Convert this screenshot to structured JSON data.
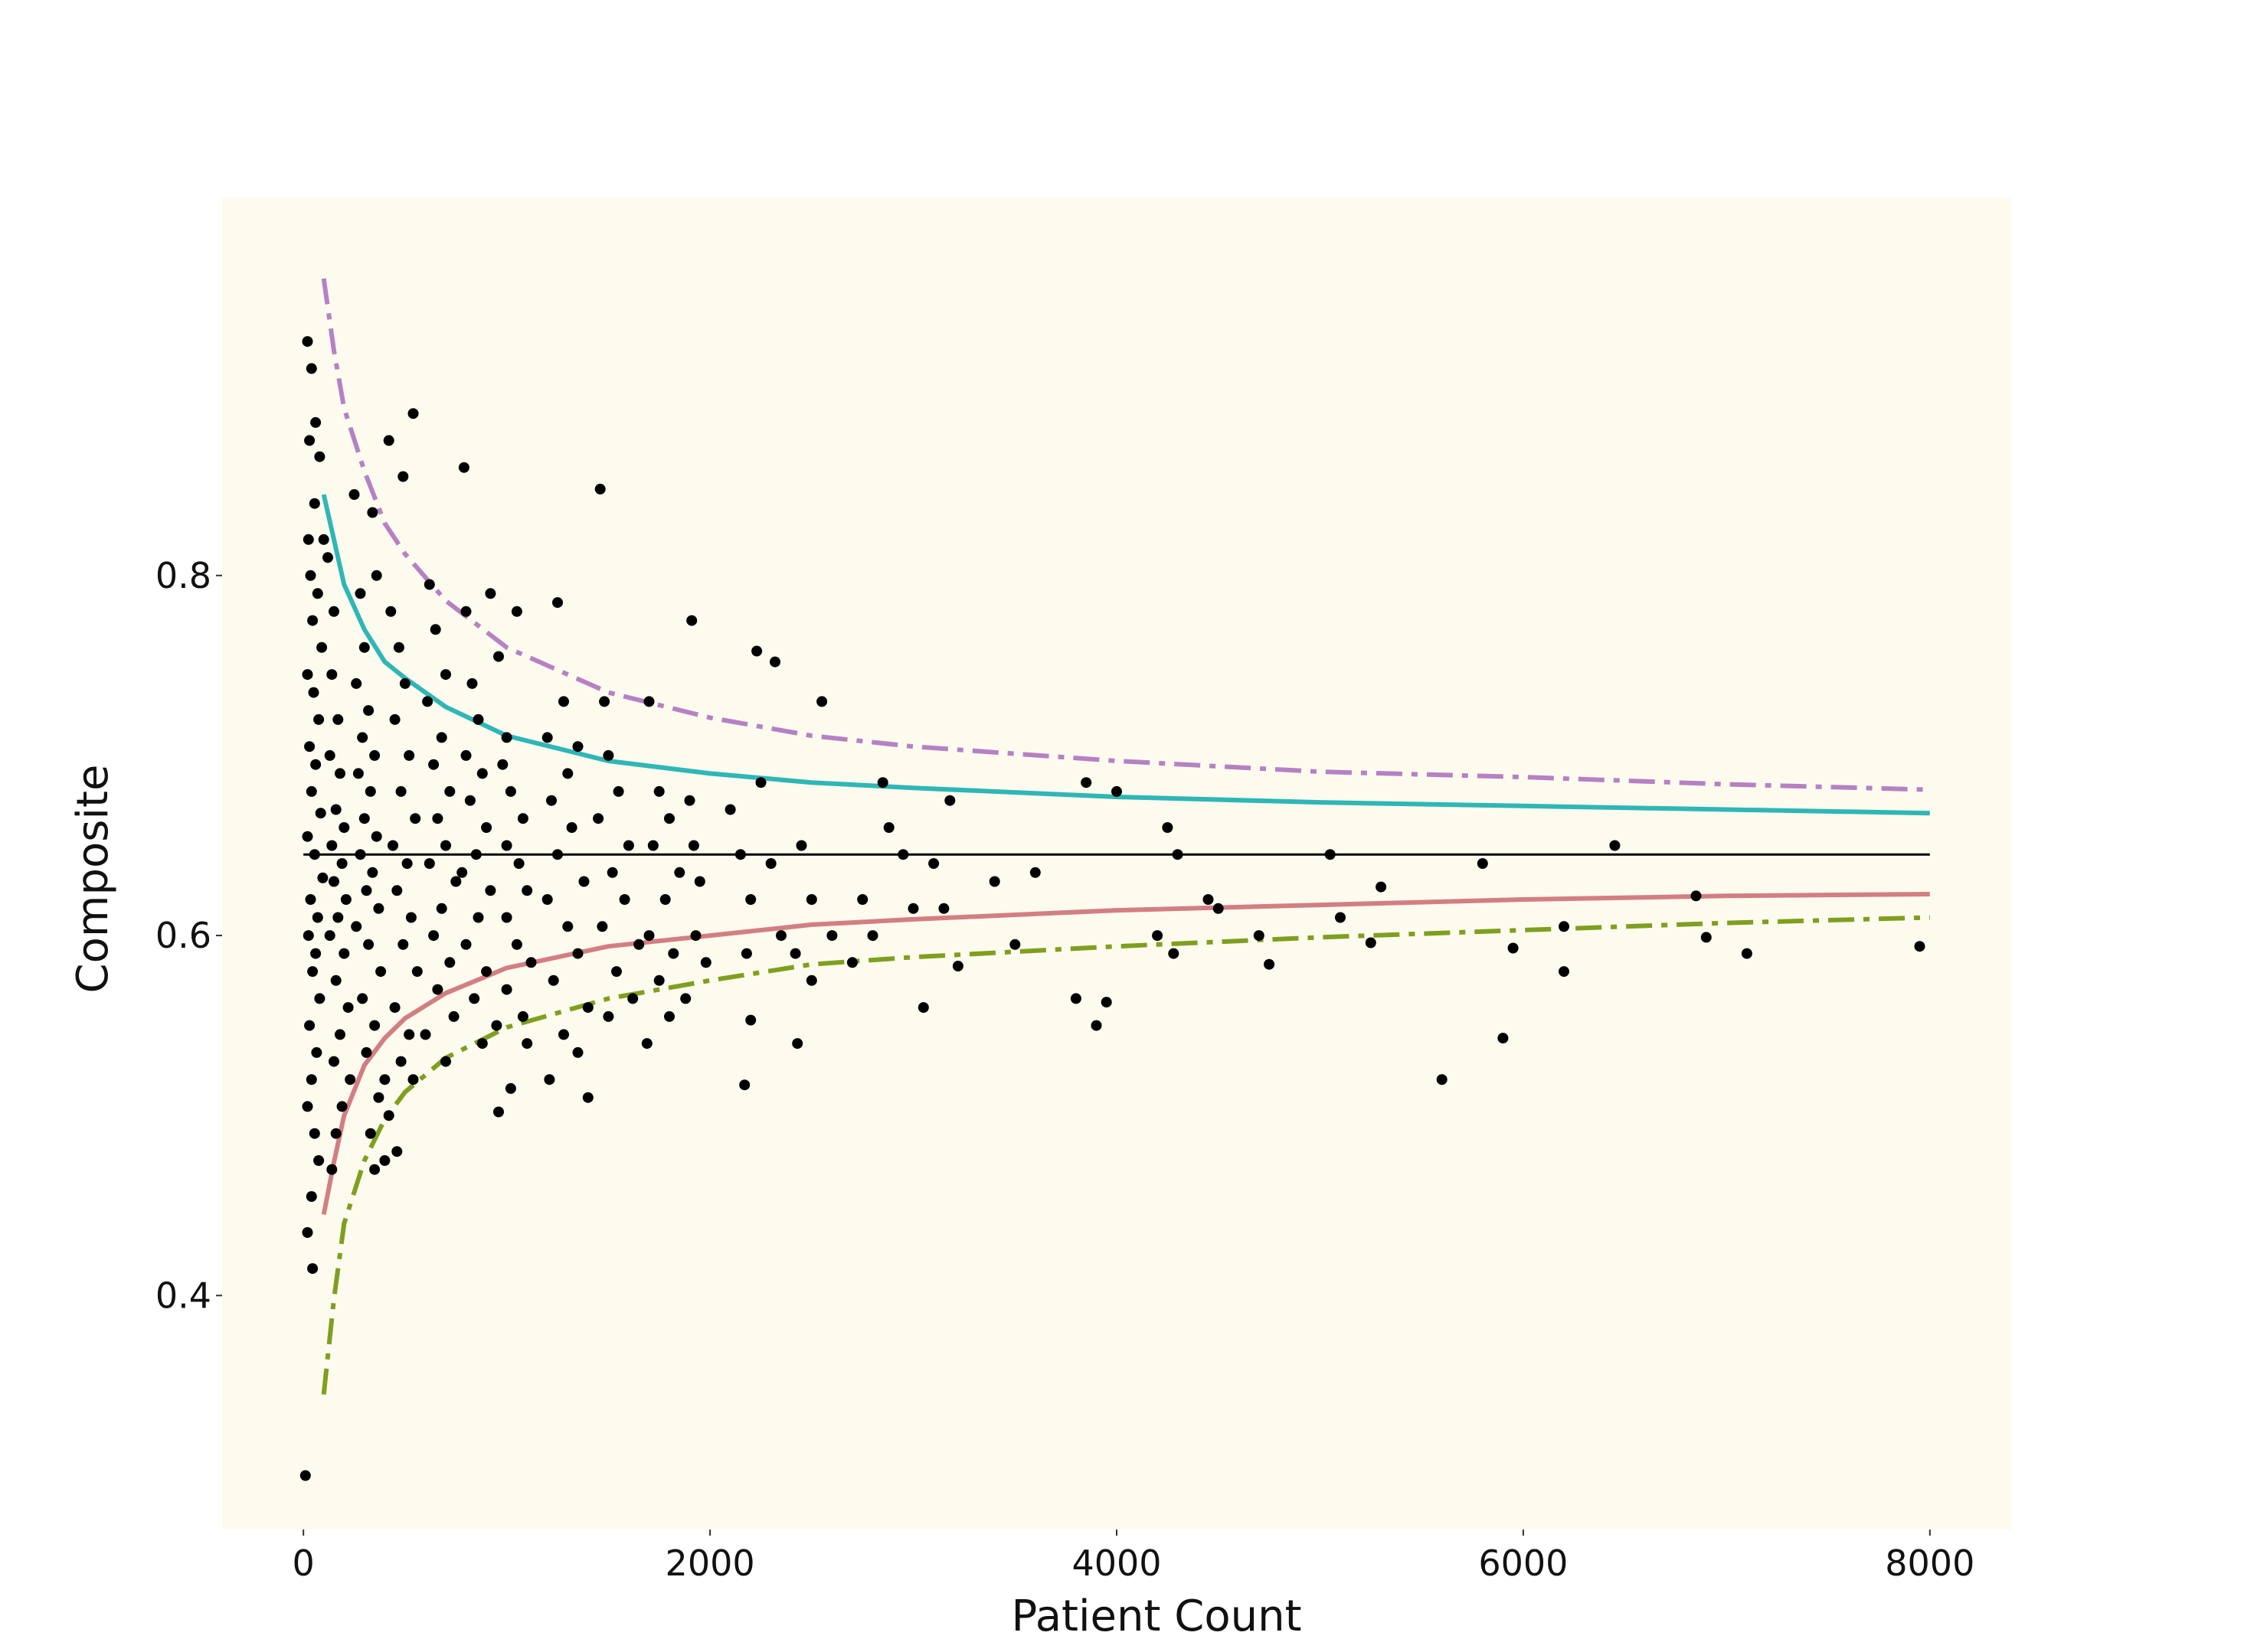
{
  "chart_data": {
    "type": "scatter",
    "xlabel": "Patient Count",
    "ylabel": "Composite",
    "xlim": [
      -400,
      8400
    ],
    "ylim": [
      0.27,
      1.01
    ],
    "x_ticks": [
      {
        "value": 0,
        "label": "0"
      },
      {
        "value": 2000,
        "label": "2000"
      },
      {
        "value": 4000,
        "label": "4000"
      },
      {
        "value": 6000,
        "label": "6000"
      },
      {
        "value": 8000,
        "label": "8000"
      }
    ],
    "y_ticks": [
      {
        "value": 0.4,
        "label": "0.4"
      },
      {
        "value": 0.6,
        "label": "0.6"
      },
      {
        "value": 0.8,
        "label": "0.8"
      }
    ],
    "grid": false,
    "background_color": "#fdfbee",
    "reference_line": {
      "y": 0.645,
      "color": "#000000"
    },
    "control_limits": {
      "x": [
        100,
        150,
        200,
        300,
        400,
        500,
        700,
        1000,
        1500,
        2000,
        2500,
        3000,
        4000,
        5000,
        6000,
        7000,
        8000
      ],
      "upper_outer": [
        0.965,
        0.925,
        0.893,
        0.858,
        0.829,
        0.812,
        0.786,
        0.76,
        0.735,
        0.721,
        0.711,
        0.705,
        0.697,
        0.691,
        0.688,
        0.684,
        0.681
      ],
      "upper_inner": [
        0.845,
        0.82,
        0.795,
        0.77,
        0.752,
        0.743,
        0.727,
        0.711,
        0.697,
        0.69,
        0.685,
        0.682,
        0.677,
        0.674,
        0.672,
        0.67,
        0.668
      ],
      "lower_inner": [
        0.445,
        0.474,
        0.5,
        0.528,
        0.543,
        0.554,
        0.568,
        0.582,
        0.594,
        0.6,
        0.606,
        0.609,
        0.614,
        0.617,
        0.62,
        0.622,
        0.623
      ],
      "lower_outer": [
        0.345,
        0.398,
        0.44,
        0.475,
        0.498,
        0.513,
        0.532,
        0.549,
        0.565,
        0.575,
        0.584,
        0.588,
        0.594,
        0.599,
        0.603,
        0.607,
        0.61
      ],
      "colors": {
        "upper_outer": "#b681c4",
        "upper_inner": "#2fb6b6",
        "lower_inner": "#d37e83",
        "lower_outer": "#7f9f1f"
      }
    },
    "point_color": "#000000",
    "points": [
      {
        "x": 20,
        "y": 0.93
      },
      {
        "x": 40,
        "y": 0.915
      },
      {
        "x": 30,
        "y": 0.875
      },
      {
        "x": 60,
        "y": 0.885
      },
      {
        "x": 80,
        "y": 0.866
      },
      {
        "x": 55,
        "y": 0.84
      },
      {
        "x": 100,
        "y": 0.82
      },
      {
        "x": 25,
        "y": 0.82
      },
      {
        "x": 35,
        "y": 0.8
      },
      {
        "x": 70,
        "y": 0.79
      },
      {
        "x": 45,
        "y": 0.775
      },
      {
        "x": 90,
        "y": 0.76
      },
      {
        "x": 20,
        "y": 0.745
      },
      {
        "x": 50,
        "y": 0.735
      },
      {
        "x": 75,
        "y": 0.72
      },
      {
        "x": 30,
        "y": 0.705
      },
      {
        "x": 60,
        "y": 0.695
      },
      {
        "x": 40,
        "y": 0.68
      },
      {
        "x": 85,
        "y": 0.668
      },
      {
        "x": 20,
        "y": 0.655
      },
      {
        "x": 55,
        "y": 0.645
      },
      {
        "x": 95,
        "y": 0.632
      },
      {
        "x": 35,
        "y": 0.62
      },
      {
        "x": 70,
        "y": 0.61
      },
      {
        "x": 25,
        "y": 0.6
      },
      {
        "x": 60,
        "y": 0.59
      },
      {
        "x": 45,
        "y": 0.58
      },
      {
        "x": 80,
        "y": 0.565
      },
      {
        "x": 30,
        "y": 0.55
      },
      {
        "x": 65,
        "y": 0.535
      },
      {
        "x": 40,
        "y": 0.52
      },
      {
        "x": 20,
        "y": 0.505
      },
      {
        "x": 55,
        "y": 0.49
      },
      {
        "x": 75,
        "y": 0.475
      },
      {
        "x": 40,
        "y": 0.455
      },
      {
        "x": 20,
        "y": 0.435
      },
      {
        "x": 45,
        "y": 0.415
      },
      {
        "x": 10,
        "y": 0.3
      },
      {
        "x": 120,
        "y": 0.81
      },
      {
        "x": 150,
        "y": 0.78
      },
      {
        "x": 140,
        "y": 0.745
      },
      {
        "x": 170,
        "y": 0.72
      },
      {
        "x": 130,
        "y": 0.7
      },
      {
        "x": 180,
        "y": 0.69
      },
      {
        "x": 160,
        "y": 0.67
      },
      {
        "x": 200,
        "y": 0.66
      },
      {
        "x": 140,
        "y": 0.65
      },
      {
        "x": 190,
        "y": 0.64
      },
      {
        "x": 150,
        "y": 0.63
      },
      {
        "x": 210,
        "y": 0.62
      },
      {
        "x": 170,
        "y": 0.61
      },
      {
        "x": 130,
        "y": 0.6
      },
      {
        "x": 200,
        "y": 0.59
      },
      {
        "x": 160,
        "y": 0.575
      },
      {
        "x": 220,
        "y": 0.56
      },
      {
        "x": 180,
        "y": 0.545
      },
      {
        "x": 150,
        "y": 0.53
      },
      {
        "x": 230,
        "y": 0.52
      },
      {
        "x": 190,
        "y": 0.505
      },
      {
        "x": 160,
        "y": 0.49
      },
      {
        "x": 140,
        "y": 0.47
      },
      {
        "x": 250,
        "y": 0.845
      },
      {
        "x": 280,
        "y": 0.79
      },
      {
        "x": 300,
        "y": 0.76
      },
      {
        "x": 260,
        "y": 0.74
      },
      {
        "x": 320,
        "y": 0.725
      },
      {
        "x": 290,
        "y": 0.71
      },
      {
        "x": 350,
        "y": 0.7
      },
      {
        "x": 270,
        "y": 0.69
      },
      {
        "x": 330,
        "y": 0.68
      },
      {
        "x": 300,
        "y": 0.665
      },
      {
        "x": 360,
        "y": 0.655
      },
      {
        "x": 280,
        "y": 0.645
      },
      {
        "x": 340,
        "y": 0.635
      },
      {
        "x": 310,
        "y": 0.625
      },
      {
        "x": 370,
        "y": 0.615
      },
      {
        "x": 260,
        "y": 0.605
      },
      {
        "x": 320,
        "y": 0.595
      },
      {
        "x": 380,
        "y": 0.58
      },
      {
        "x": 290,
        "y": 0.565
      },
      {
        "x": 350,
        "y": 0.55
      },
      {
        "x": 310,
        "y": 0.535
      },
      {
        "x": 400,
        "y": 0.52
      },
      {
        "x": 370,
        "y": 0.51
      },
      {
        "x": 330,
        "y": 0.49
      },
      {
        "x": 350,
        "y": 0.47
      },
      {
        "x": 400,
        "y": 0.475
      },
      {
        "x": 360,
        "y": 0.8
      },
      {
        "x": 340,
        "y": 0.835
      },
      {
        "x": 420,
        "y": 0.875
      },
      {
        "x": 490,
        "y": 0.855
      },
      {
        "x": 540,
        "y": 0.89
      },
      {
        "x": 430,
        "y": 0.78
      },
      {
        "x": 470,
        "y": 0.76
      },
      {
        "x": 500,
        "y": 0.74
      },
      {
        "x": 450,
        "y": 0.72
      },
      {
        "x": 520,
        "y": 0.7
      },
      {
        "x": 480,
        "y": 0.68
      },
      {
        "x": 550,
        "y": 0.665
      },
      {
        "x": 440,
        "y": 0.65
      },
      {
        "x": 510,
        "y": 0.64
      },
      {
        "x": 460,
        "y": 0.625
      },
      {
        "x": 530,
        "y": 0.61
      },
      {
        "x": 490,
        "y": 0.595
      },
      {
        "x": 560,
        "y": 0.58
      },
      {
        "x": 450,
        "y": 0.56
      },
      {
        "x": 520,
        "y": 0.545
      },
      {
        "x": 480,
        "y": 0.53
      },
      {
        "x": 540,
        "y": 0.52
      },
      {
        "x": 420,
        "y": 0.5
      },
      {
        "x": 460,
        "y": 0.48
      },
      {
        "x": 620,
        "y": 0.795
      },
      {
        "x": 650,
        "y": 0.77
      },
      {
        "x": 700,
        "y": 0.745
      },
      {
        "x": 610,
        "y": 0.73
      },
      {
        "x": 680,
        "y": 0.71
      },
      {
        "x": 640,
        "y": 0.695
      },
      {
        "x": 720,
        "y": 0.68
      },
      {
        "x": 660,
        "y": 0.665
      },
      {
        "x": 700,
        "y": 0.65
      },
      {
        "x": 620,
        "y": 0.64
      },
      {
        "x": 750,
        "y": 0.63
      },
      {
        "x": 680,
        "y": 0.615
      },
      {
        "x": 640,
        "y": 0.6
      },
      {
        "x": 720,
        "y": 0.585
      },
      {
        "x": 660,
        "y": 0.57
      },
      {
        "x": 740,
        "y": 0.555
      },
      {
        "x": 600,
        "y": 0.545
      },
      {
        "x": 700,
        "y": 0.53
      },
      {
        "x": 790,
        "y": 0.86
      },
      {
        "x": 800,
        "y": 0.78
      },
      {
        "x": 830,
        "y": 0.74
      },
      {
        "x": 860,
        "y": 0.72
      },
      {
        "x": 800,
        "y": 0.7
      },
      {
        "x": 880,
        "y": 0.69
      },
      {
        "x": 820,
        "y": 0.675
      },
      {
        "x": 900,
        "y": 0.66
      },
      {
        "x": 850,
        "y": 0.645
      },
      {
        "x": 780,
        "y": 0.635
      },
      {
        "x": 920,
        "y": 0.625
      },
      {
        "x": 860,
        "y": 0.61
      },
      {
        "x": 800,
        "y": 0.595
      },
      {
        "x": 900,
        "y": 0.58
      },
      {
        "x": 840,
        "y": 0.565
      },
      {
        "x": 950,
        "y": 0.55
      },
      {
        "x": 880,
        "y": 0.54
      },
      {
        "x": 920,
        "y": 0.79
      },
      {
        "x": 960,
        "y": 0.755
      },
      {
        "x": 1000,
        "y": 0.71
      },
      {
        "x": 1050,
        "y": 0.78
      },
      {
        "x": 980,
        "y": 0.695
      },
      {
        "x": 1020,
        "y": 0.68
      },
      {
        "x": 1080,
        "y": 0.665
      },
      {
        "x": 1000,
        "y": 0.65
      },
      {
        "x": 1060,
        "y": 0.64
      },
      {
        "x": 1100,
        "y": 0.625
      },
      {
        "x": 1000,
        "y": 0.61
      },
      {
        "x": 1050,
        "y": 0.595
      },
      {
        "x": 1120,
        "y": 0.585
      },
      {
        "x": 1000,
        "y": 0.57
      },
      {
        "x": 1080,
        "y": 0.555
      },
      {
        "x": 960,
        "y": 0.502
      },
      {
        "x": 1020,
        "y": 0.515
      },
      {
        "x": 1100,
        "y": 0.54
      },
      {
        "x": 1250,
        "y": 0.785
      },
      {
        "x": 1280,
        "y": 0.73
      },
      {
        "x": 1200,
        "y": 0.71
      },
      {
        "x": 1300,
        "y": 0.69
      },
      {
        "x": 1350,
        "y": 0.705
      },
      {
        "x": 1220,
        "y": 0.675
      },
      {
        "x": 1320,
        "y": 0.66
      },
      {
        "x": 1250,
        "y": 0.645
      },
      {
        "x": 1380,
        "y": 0.63
      },
      {
        "x": 1200,
        "y": 0.62
      },
      {
        "x": 1300,
        "y": 0.605
      },
      {
        "x": 1350,
        "y": 0.59
      },
      {
        "x": 1230,
        "y": 0.575
      },
      {
        "x": 1400,
        "y": 0.56
      },
      {
        "x": 1280,
        "y": 0.545
      },
      {
        "x": 1210,
        "y": 0.52
      },
      {
        "x": 1400,
        "y": 0.51
      },
      {
        "x": 1350,
        "y": 0.535
      },
      {
        "x": 1460,
        "y": 0.848
      },
      {
        "x": 1480,
        "y": 0.73
      },
      {
        "x": 1500,
        "y": 0.7
      },
      {
        "x": 1550,
        "y": 0.68
      },
      {
        "x": 1450,
        "y": 0.665
      },
      {
        "x": 1600,
        "y": 0.65
      },
      {
        "x": 1520,
        "y": 0.635
      },
      {
        "x": 1580,
        "y": 0.62
      },
      {
        "x": 1470,
        "y": 0.605
      },
      {
        "x": 1650,
        "y": 0.595
      },
      {
        "x": 1540,
        "y": 0.58
      },
      {
        "x": 1620,
        "y": 0.565
      },
      {
        "x": 1500,
        "y": 0.555
      },
      {
        "x": 1700,
        "y": 0.73
      },
      {
        "x": 1750,
        "y": 0.68
      },
      {
        "x": 1800,
        "y": 0.665
      },
      {
        "x": 1720,
        "y": 0.65
      },
      {
        "x": 1850,
        "y": 0.635
      },
      {
        "x": 1780,
        "y": 0.62
      },
      {
        "x": 1700,
        "y": 0.6
      },
      {
        "x": 1820,
        "y": 0.59
      },
      {
        "x": 1750,
        "y": 0.575
      },
      {
        "x": 1880,
        "y": 0.565
      },
      {
        "x": 1690,
        "y": 0.54
      },
      {
        "x": 1800,
        "y": 0.555
      },
      {
        "x": 1910,
        "y": 0.775
      },
      {
        "x": 1900,
        "y": 0.675
      },
      {
        "x": 1920,
        "y": 0.65
      },
      {
        "x": 1950,
        "y": 0.63
      },
      {
        "x": 1930,
        "y": 0.6
      },
      {
        "x": 1980,
        "y": 0.585
      },
      {
        "x": 2100,
        "y": 0.67
      },
      {
        "x": 2150,
        "y": 0.645
      },
      {
        "x": 2200,
        "y": 0.62
      },
      {
        "x": 2180,
        "y": 0.59
      },
      {
        "x": 2170,
        "y": 0.517
      },
      {
        "x": 2230,
        "y": 0.758
      },
      {
        "x": 2320,
        "y": 0.752
      },
      {
        "x": 2250,
        "y": 0.685
      },
      {
        "x": 2300,
        "y": 0.64
      },
      {
        "x": 2350,
        "y": 0.6
      },
      {
        "x": 2200,
        "y": 0.553
      },
      {
        "x": 2450,
        "y": 0.65
      },
      {
        "x": 2500,
        "y": 0.62
      },
      {
        "x": 2420,
        "y": 0.59
      },
      {
        "x": 2550,
        "y": 0.73
      },
      {
        "x": 2500,
        "y": 0.575
      },
      {
        "x": 2430,
        "y": 0.54
      },
      {
        "x": 2600,
        "y": 0.6
      },
      {
        "x": 2850,
        "y": 0.685
      },
      {
        "x": 2880,
        "y": 0.66
      },
      {
        "x": 2750,
        "y": 0.62
      },
      {
        "x": 2800,
        "y": 0.6
      },
      {
        "x": 2950,
        "y": 0.645
      },
      {
        "x": 3000,
        "y": 0.615
      },
      {
        "x": 3100,
        "y": 0.64
      },
      {
        "x": 3180,
        "y": 0.675
      },
      {
        "x": 3050,
        "y": 0.56
      },
      {
        "x": 3150,
        "y": 0.615
      },
      {
        "x": 3220,
        "y": 0.583
      },
      {
        "x": 2700,
        "y": 0.585
      },
      {
        "x": 3400,
        "y": 0.63
      },
      {
        "x": 3600,
        "y": 0.635
      },
      {
        "x": 3500,
        "y": 0.595
      },
      {
        "x": 3850,
        "y": 0.685
      },
      {
        "x": 4000,
        "y": 0.68
      },
      {
        "x": 3800,
        "y": 0.565
      },
      {
        "x": 3900,
        "y": 0.55
      },
      {
        "x": 3950,
        "y": 0.563
      },
      {
        "x": 4200,
        "y": 0.6
      },
      {
        "x": 4250,
        "y": 0.66
      },
      {
        "x": 4300,
        "y": 0.645
      },
      {
        "x": 4280,
        "y": 0.59
      },
      {
        "x": 4450,
        "y": 0.62
      },
      {
        "x": 4500,
        "y": 0.615
      },
      {
        "x": 4700,
        "y": 0.6
      },
      {
        "x": 4750,
        "y": 0.584
      },
      {
        "x": 5050,
        "y": 0.645
      },
      {
        "x": 5100,
        "y": 0.61
      },
      {
        "x": 5300,
        "y": 0.627
      },
      {
        "x": 5250,
        "y": 0.596
      },
      {
        "x": 5600,
        "y": 0.52
      },
      {
        "x": 5800,
        "y": 0.64
      },
      {
        "x": 5900,
        "y": 0.543
      },
      {
        "x": 5950,
        "y": 0.593
      },
      {
        "x": 6200,
        "y": 0.605
      },
      {
        "x": 6200,
        "y": 0.58
      },
      {
        "x": 6450,
        "y": 0.65
      },
      {
        "x": 6850,
        "y": 0.622
      },
      {
        "x": 6900,
        "y": 0.599
      },
      {
        "x": 7100,
        "y": 0.59
      },
      {
        "x": 7950,
        "y": 0.594
      }
    ]
  }
}
